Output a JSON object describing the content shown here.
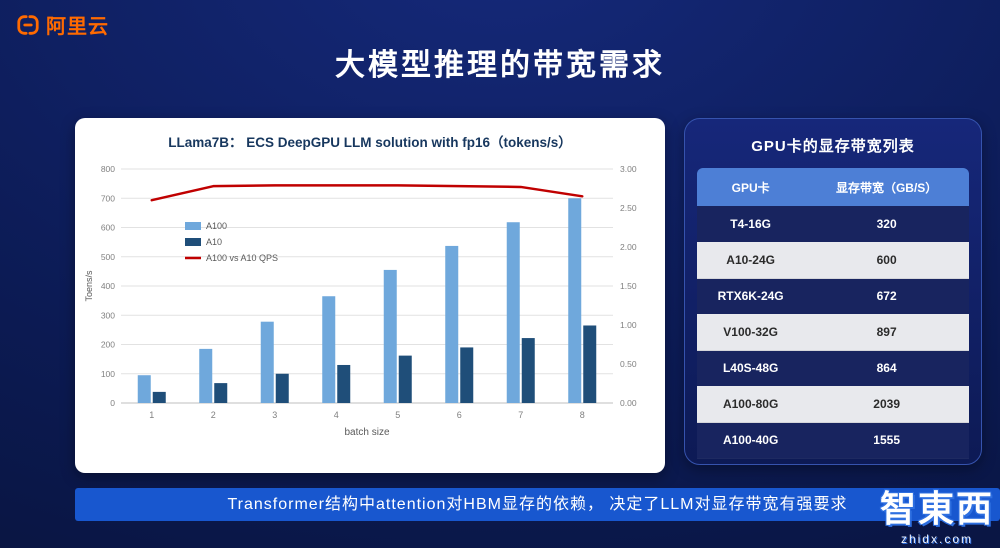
{
  "slide": {
    "logo_text": "阿里云",
    "title": "大模型推理的带宽需求",
    "footer": "Transformer结构中attention对HBM显存的依赖， 决定了LLM对显存带宽有强要求",
    "watermark_main": "智東西",
    "watermark_sub": "zhidx.com"
  },
  "chart_data": {
    "type": "bar",
    "title": "LLama7B：  ECS DeepGPU LLM solution with fp16（tokens/s）",
    "categories": [
      "1",
      "2",
      "3",
      "4",
      "5",
      "6",
      "7",
      "8"
    ],
    "xlabel": "batch size",
    "ylabel_left": "Toens/s",
    "ylim_left": [
      0,
      800
    ],
    "ytick_step_left": 100,
    "ylim_right": [
      0,
      3.0
    ],
    "ytick_step_right": 0.5,
    "grid": true,
    "legend_position": "upper-left-inside",
    "series": [
      {
        "name": "A100",
        "type": "bar",
        "axis": "left",
        "color": "#6fa8dc",
        "values": [
          95,
          185,
          278,
          365,
          455,
          537,
          618,
          700
        ]
      },
      {
        "name": "A10",
        "type": "bar",
        "axis": "left",
        "color": "#1f4e79",
        "values": [
          38,
          68,
          100,
          130,
          162,
          190,
          222,
          265
        ]
      },
      {
        "name": "A100 vs A10 QPS",
        "type": "line",
        "axis": "right",
        "color": "#c00000",
        "values": [
          2.6,
          2.78,
          2.79,
          2.79,
          2.79,
          2.78,
          2.77,
          2.65
        ]
      }
    ]
  },
  "gpu_table": {
    "title": "GPU卡的显存带宽列表",
    "headers": [
      "GPU卡",
      "显存带宽（GB/S）"
    ],
    "rows": [
      [
        "T4-16G",
        "320"
      ],
      [
        "A10-24G",
        "600"
      ],
      [
        "RTX6K-24G",
        "672"
      ],
      [
        "V100-32G",
        "897"
      ],
      [
        "L40S-48G",
        "864"
      ],
      [
        "A100-80G",
        "2039"
      ],
      [
        "A100-40G",
        "1555"
      ]
    ]
  },
  "colors": {
    "brand_orange": "#ff6a00",
    "banner_blue": "#1857cf",
    "table_header_blue": "#4d7fd6",
    "table_dark_row": "#18245f",
    "table_light_row": "#e8e9ed",
    "a100_bar": "#6fa8dc",
    "a10_bar": "#1f4e79",
    "qps_line": "#c00000"
  }
}
